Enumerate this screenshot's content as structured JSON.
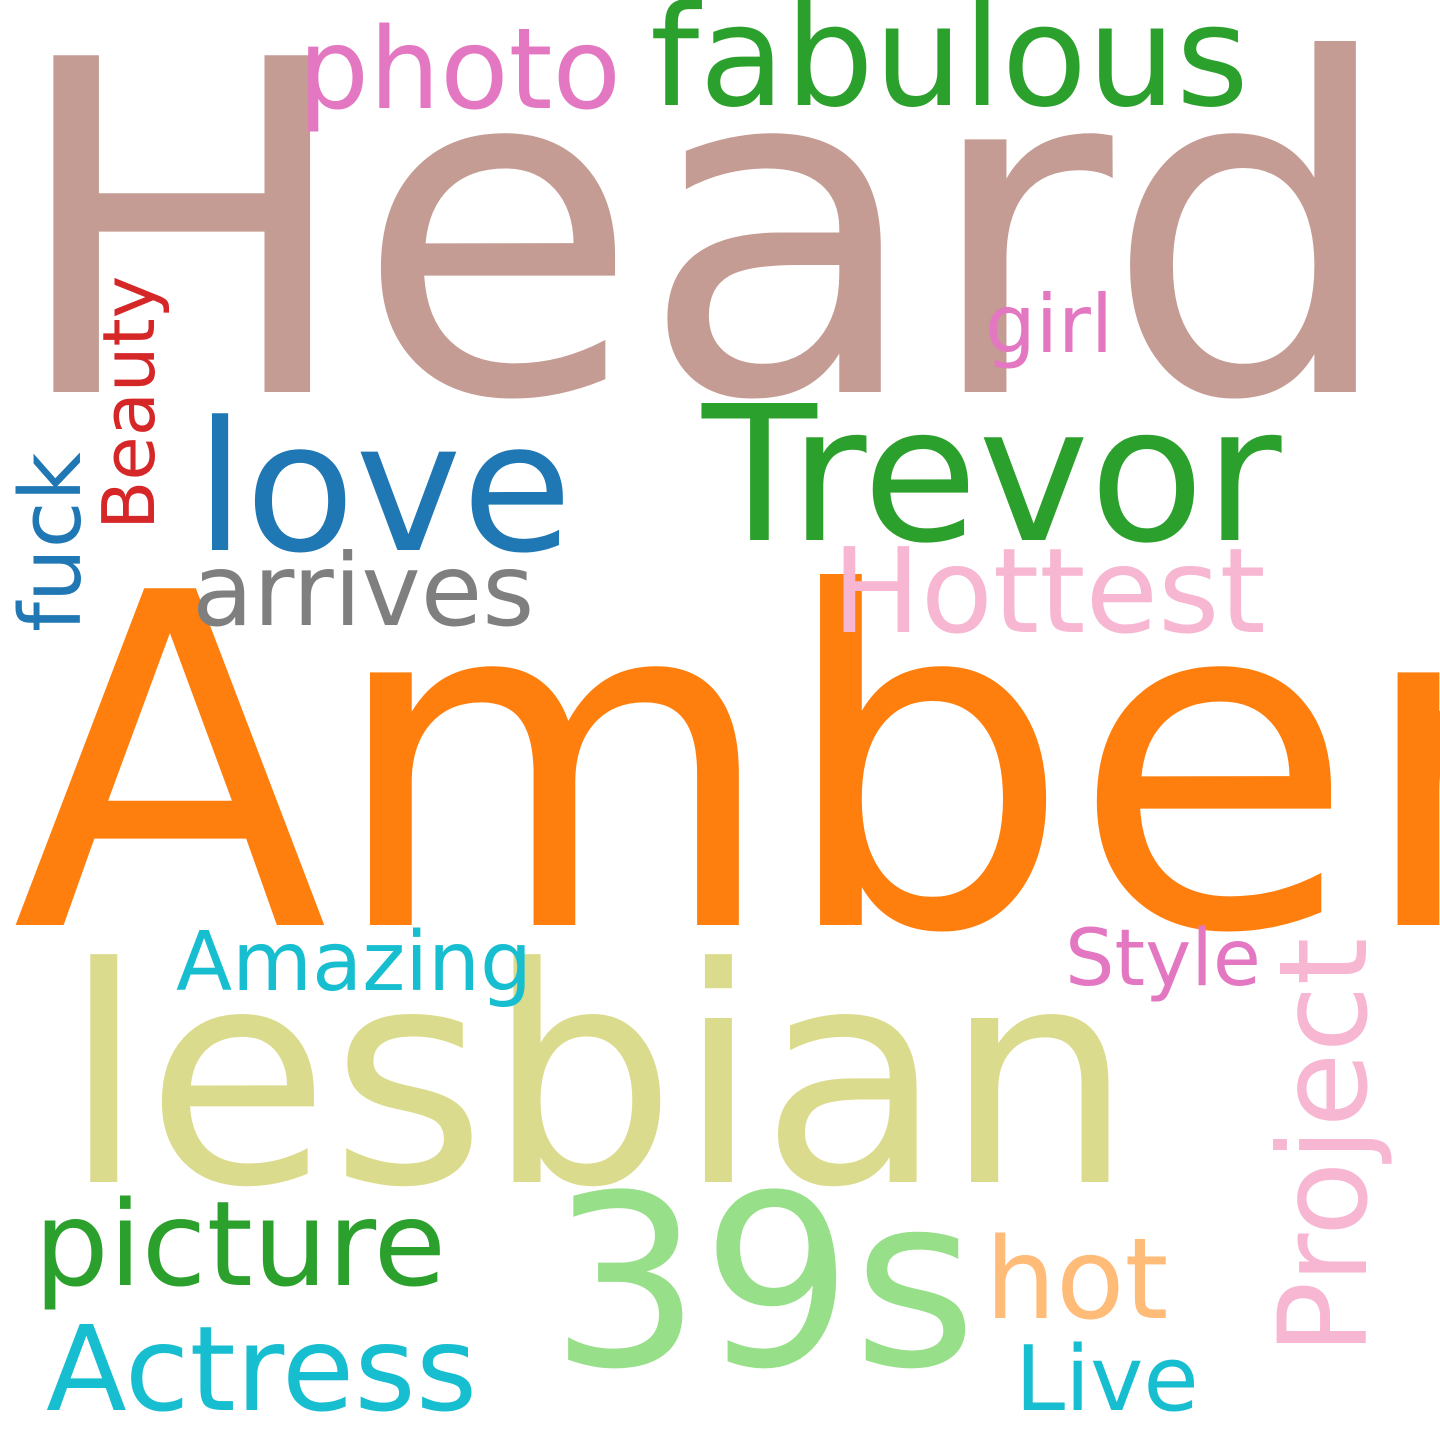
{
  "words": [
    {
      "text": "Heard",
      "color": "#c49c94"
    },
    {
      "text": "Amber",
      "color": "#ff7f0e"
    },
    {
      "text": "lesbian",
      "color": "#dbdb8d"
    },
    {
      "text": "39s",
      "color": "#98df8a"
    },
    {
      "text": "Trevor",
      "color": "#2ca02c"
    },
    {
      "text": "fabulous",
      "color": "#2ca02c"
    },
    {
      "text": "love",
      "color": "#1f77b4"
    },
    {
      "text": "photo",
      "color": "#e377c2"
    },
    {
      "text": "Hottest",
      "color": "#f7b6d2"
    },
    {
      "text": "arrives",
      "color": "#7f7f7f"
    },
    {
      "text": "girl",
      "color": "#e377c2"
    },
    {
      "text": "Beauty",
      "color": "#d62728"
    },
    {
      "text": "fuck",
      "color": "#1f77b4"
    },
    {
      "text": "Amazing",
      "color": "#17becf"
    },
    {
      "text": "Style",
      "color": "#e377c2"
    },
    {
      "text": "Project",
      "color": "#f7b6d2"
    },
    {
      "text": "picture",
      "color": "#2ca02c"
    },
    {
      "text": "hot",
      "color": "#ffbb78"
    },
    {
      "text": "Actress",
      "color": "#17becf"
    },
    {
      "text": "Live",
      "color": "#17becf"
    }
  ]
}
